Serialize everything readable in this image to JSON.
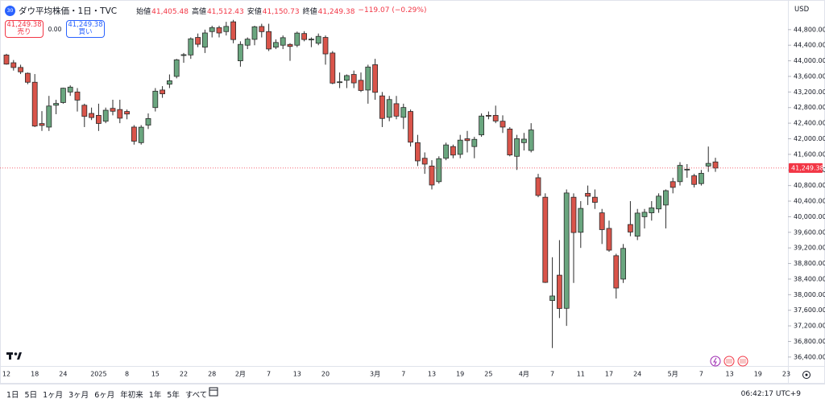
{
  "ui": {
    "header": {
      "symbol_badge": "30",
      "title": "ダウ平均株価・1日・TVC",
      "ohlc": [
        {
          "label": "始値",
          "value": "41,405.48"
        },
        {
          "label": "高値",
          "value": "41,512.43"
        },
        {
          "label": "安値",
          "value": "41,150.73"
        },
        {
          "label": "終値",
          "value": "41,249.38"
        }
      ],
      "change": "−119.07 (−0.29%)"
    },
    "trade": {
      "sell_price": "41,249.38",
      "sell_label": "売り",
      "spread": "0.00",
      "buy_price": "41,249.38",
      "buy_label": "買い"
    },
    "currency": "USD",
    "toolbar": {
      "ranges": [
        "1日",
        "5日",
        "1ヶ月",
        "3ヶ月",
        "6ヶ月",
        "年初来",
        "1年",
        "5年",
        "すべて"
      ],
      "clock": "06:42:17 UTC+9"
    }
  },
  "chart_data": {
    "type": "candlestick",
    "up_color": "#6aa67f",
    "down_color": "#d9544a",
    "outline_color": "#2a2a2a",
    "last_price_label": "41,249.38",
    "last_price_color": "#f23645",
    "categories": [
      "12",
      null,
      null,
      null,
      "18",
      null,
      null,
      null,
      "24",
      null,
      null,
      null,
      null,
      "2025",
      null,
      null,
      null,
      "8",
      null,
      null,
      null,
      "15",
      null,
      null,
      null,
      "22",
      null,
      null,
      null,
      "28",
      null,
      null,
      null,
      "2月",
      null,
      null,
      null,
      "7",
      null,
      null,
      null,
      "13",
      null,
      null,
      null,
      "20",
      null,
      null,
      null,
      null,
      null,
      null,
      "3月",
      null,
      null,
      null,
      "7",
      null,
      null,
      null,
      "13",
      null,
      null,
      null,
      "19",
      null,
      null,
      null,
      "25",
      null,
      null,
      null,
      null,
      "4月",
      null,
      null,
      null,
      "7",
      null,
      null,
      null,
      "11",
      null,
      null,
      null,
      "17",
      null,
      null,
      null,
      "24",
      null,
      null,
      null,
      null,
      "5月",
      null,
      null,
      null,
      "7",
      null,
      null,
      null,
      "13",
      null,
      null,
      null,
      "19",
      null,
      null,
      null,
      "23"
    ],
    "open": [
      44149,
      43950,
      43830,
      43680,
      43450,
      42390,
      42300,
      42860,
      42930,
      43200,
      43200,
      42860,
      42650,
      42600,
      42450,
      42780,
      42750,
      42700,
      42300,
      41900,
      42350,
      42800,
      43250,
      43400,
      43600,
      44150,
      44150,
      44600,
      44350,
      44750,
      44850,
      44750,
      45000,
      44000,
      44400,
      44550,
      44880,
      44750,
      44350,
      44400,
      44420,
      44400,
      44700,
      44550,
      44450,
      44600,
      44200,
      43450,
      43500,
      43650,
      43500,
      43250,
      43900,
      43100,
      42550,
      42900,
      42550,
      42700,
      41900,
      41500,
      41300,
      40900,
      41500,
      41800,
      41600,
      42000,
      41800,
      42100,
      42600,
      42600,
      42450,
      42250,
      41550,
      41900,
      41700,
      41000,
      40500,
      37850,
      38500,
      37650,
      40500,
      39600,
      40600,
      40500,
      40100,
      39700,
      39000,
      38400,
      39800,
      39500,
      40000,
      40100,
      40200,
      40300,
      40900,
      40900,
      41200,
      41050,
      40850,
      41300,
      41405.48,
      null,
      null,
      null,
      null,
      null,
      null,
      null,
      null,
      null,
      null
    ],
    "high": [
      44180,
      44020,
      43900,
      43700,
      43660,
      42710,
      43100,
      43000,
      43310,
      43370,
      43300,
      42900,
      42800,
      42900,
      42800,
      43000,
      43000,
      42750,
      42350,
      42350,
      42650,
      43300,
      43350,
      43650,
      44050,
      44200,
      44600,
      44700,
      44800,
      44900,
      44900,
      45000,
      45050,
      44500,
      44600,
      44900,
      44950,
      44950,
      44550,
      44650,
      44450,
      44750,
      44760,
      44600,
      44700,
      44650,
      44250,
      43700,
      43650,
      43750,
      43700,
      43900,
      44050,
      43200,
      43100,
      43100,
      42900,
      42750,
      42100,
      41650,
      41450,
      41550,
      41900,
      41850,
      42100,
      42200,
      42050,
      42650,
      42700,
      42850,
      42600,
      42300,
      42100,
      42150,
      42400,
      41100,
      40600,
      38960,
      39400,
      40700,
      40600,
      40400,
      40800,
      40700,
      40200,
      39900,
      39050,
      39300,
      40400,
      40200,
      40200,
      40400,
      40600,
      40700,
      41000,
      41400,
      41350,
      41100,
      41200,
      41800,
      41512.43,
      null,
      null,
      null,
      null,
      null,
      null,
      null,
      null,
      null,
      null
    ],
    "low": [
      43900,
      43750,
      43660,
      43400,
      42300,
      42200,
      42200,
      42630,
      42900,
      43100,
      42700,
      42300,
      42480,
      42200,
      42400,
      42600,
      42400,
      42500,
      41850,
      41850,
      42250,
      42700,
      43050,
      43300,
      43550,
      43950,
      44050,
      44350,
      44200,
      44600,
      44600,
      44650,
      44450,
      43850,
      44300,
      44400,
      44600,
      44250,
      44300,
      44300,
      44000,
      44350,
      44500,
      44350,
      44400,
      43900,
      43400,
      43300,
      43300,
      43300,
      43200,
      42900,
      43000,
      42300,
      42450,
      42500,
      42250,
      41800,
      41300,
      41100,
      40700,
      40850,
      41450,
      41500,
      41500,
      41650,
      41500,
      42050,
      42500,
      42400,
      42150,
      41550,
      41200,
      41700,
      41650,
      40500,
      38300,
      36630,
      37400,
      37200,
      38300,
      39200,
      40300,
      40200,
      39300,
      39100,
      37900,
      38300,
      39500,
      39400,
      39700,
      39900,
      40100,
      39700,
      40600,
      40800,
      41000,
      40750,
      40800,
      41150,
      41150.73,
      null,
      null,
      null,
      null,
      null,
      null,
      null,
      null,
      null,
      null
    ],
    "close": [
      43915,
      43828,
      43717,
      43450,
      42326,
      42342,
      42840,
      42906,
      43297,
      43325,
      42992,
      42574,
      42544,
      42392,
      42732,
      42706,
      42528,
      42635,
      41938,
      42297,
      42518,
      43221,
      43153,
      43488,
      44025,
      44157,
      44565,
      44424,
      44714,
      44851,
      44714,
      44882,
      44545,
      44421,
      44556,
      44873,
      44748,
      44303,
      44470,
      44593,
      44368,
      44711,
      44546,
      44556,
      44627,
      44177,
      43428,
      43461,
      43621,
      43433,
      43239,
      43841,
      43191,
      42521,
      43006,
      42580,
      42802,
      41912,
      41433,
      41350,
      40814,
      41489,
      41842,
      41582,
      41965,
      41953,
      41985,
      42583,
      42588,
      42455,
      42300,
      41584,
      42002,
      41990,
      42226,
      40546,
      38315,
      37966,
      37646,
      40609,
      39594,
      40213,
      40525,
      40369,
      39669,
      39142,
      38171,
      39187,
      39607,
      40093,
      40114,
      40228,
      40528,
      40669,
      40753,
      41317,
      41219,
      40829,
      41114,
      41368,
      41249.38,
      null,
      null,
      null,
      null,
      null,
      null,
      null,
      null,
      null,
      null
    ],
    "ylim": [
      36170,
      45560
    ],
    "yticks": [
      {
        "value": 36400,
        "label": "36,400.00"
      },
      {
        "value": 36800,
        "label": "36,800.00"
      },
      {
        "value": 37200,
        "label": "37,200.00"
      },
      {
        "value": 37600,
        "label": "37,600.00"
      },
      {
        "value": 38000,
        "label": "38,000.00"
      },
      {
        "value": 38400,
        "label": "38,400.00"
      },
      {
        "value": 38800,
        "label": "38,800.00"
      },
      {
        "value": 39200,
        "label": "39,200.00"
      },
      {
        "value": 39600,
        "label": "39,600.00"
      },
      {
        "value": 40000,
        "label": "40,000.00"
      },
      {
        "value": 40400,
        "label": "40,400.00"
      },
      {
        "value": 40800,
        "label": "40,800.00"
      },
      {
        "value": 41200,
        "label": "41,200.00"
      },
      {
        "value": 41600,
        "label": "41,600.00"
      },
      {
        "value": 42000,
        "label": "42,000.00"
      },
      {
        "value": 42400,
        "label": "42,400.00"
      },
      {
        "value": 42800,
        "label": "42,800.00"
      },
      {
        "value": 43200,
        "label": "43,200.00"
      },
      {
        "value": 43600,
        "label": "43,600.00"
      },
      {
        "value": 44000,
        "label": "44,000.00"
      },
      {
        "value": 44400,
        "label": "44,400.00"
      },
      {
        "value": 44800,
        "label": "44,800.00"
      }
    ],
    "grid": false
  }
}
